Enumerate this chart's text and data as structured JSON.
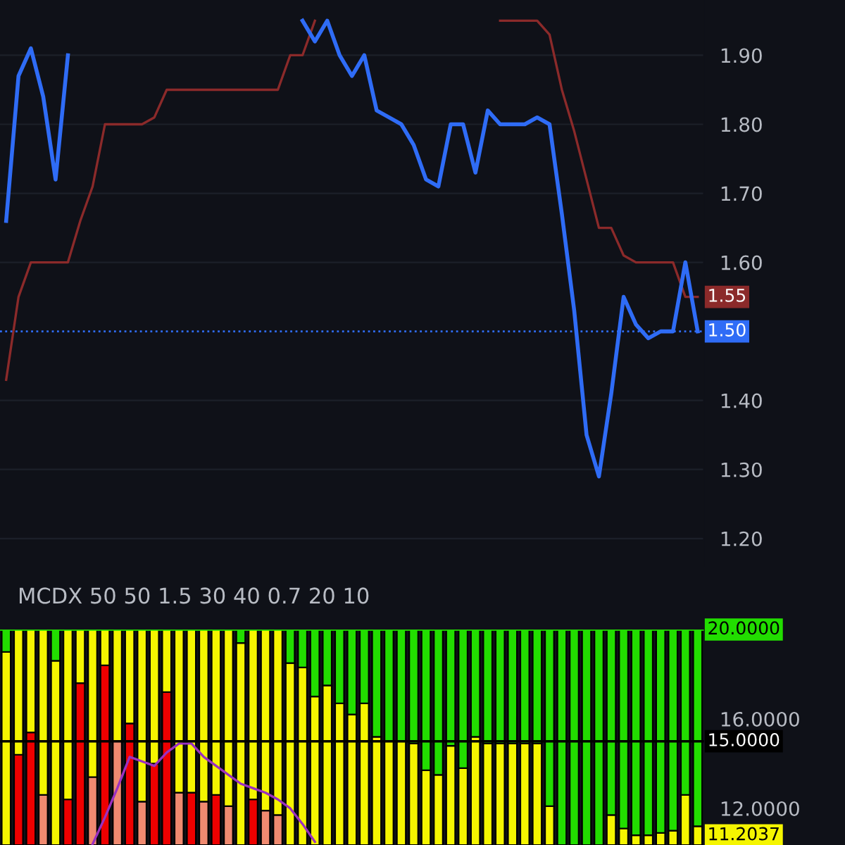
{
  "chart_data": [
    {
      "type": "line",
      "categories": [
        null,
        null,
        null,
        null,
        null,
        null,
        null,
        null,
        null,
        null,
        null,
        null,
        null,
        null,
        null,
        null,
        null,
        null,
        null,
        null,
        null,
        null,
        null,
        null,
        null,
        null,
        null,
        null,
        null,
        null,
        null,
        null,
        null,
        null,
        null,
        null,
        null,
        null,
        null,
        null,
        null,
        null,
        null,
        null,
        null,
        null,
        null,
        null,
        null,
        null,
        null,
        null,
        null,
        null,
        null,
        null,
        null
      ],
      "ylim": [
        1.16,
        1.98
      ],
      "yticks": [
        {
          "value": 1.2,
          "label": "1.20"
        },
        {
          "value": 1.3,
          "label": "1.30"
        },
        {
          "value": 1.4,
          "label": "1.40"
        },
        {
          "value": 1.6,
          "label": "1.60"
        },
        {
          "value": 1.7,
          "label": "1.70"
        },
        {
          "value": 1.8,
          "label": "1.80"
        },
        {
          "value": 1.9,
          "label": "1.90"
        }
      ],
      "grid": "y",
      "ref_lines": [
        {
          "axis": "y",
          "value": 1.5,
          "color": "#2f6cf6",
          "line_style": "dotted"
        }
      ],
      "series": [
        {
          "color": "#8b2a2a",
          "values": [
            1.43,
            1.55,
            1.6,
            1.6,
            1.6,
            1.6,
            1.66,
            1.71,
            1.8,
            1.8,
            1.8,
            1.8,
            1.81,
            1.85,
            1.85,
            1.85,
            1.85,
            1.85,
            1.85,
            1.85,
            1.85,
            1.85,
            1.85,
            1.9,
            1.9,
            1.95,
            null,
            null,
            null,
            null,
            null,
            null,
            null,
            null,
            null,
            null,
            null,
            null,
            null,
            null,
            null,
            null,
            null,
            null,
            null,
            null,
            null,
            null,
            null,
            null,
            null,
            null,
            null,
            null,
            null,
            null,
            null
          ]
        },
        {
          "color": "#8b2a2a",
          "values": [
            null,
            null,
            null,
            null,
            null,
            null,
            null,
            null,
            null,
            null,
            null,
            null,
            null,
            null,
            null,
            null,
            null,
            null,
            null,
            null,
            null,
            null,
            null,
            null,
            null,
            null,
            null,
            null,
            null,
            null,
            null,
            null,
            null,
            null,
            null,
            null,
            null,
            null,
            null,
            null,
            1.95,
            1.95,
            1.95,
            1.95,
            1.93,
            1.85,
            1.79,
            1.72,
            1.65,
            1.65,
            1.61,
            1.6,
            1.6,
            1.6,
            1.6,
            1.55,
            1.55
          ],
          "value_labels": [
            null,
            null,
            null,
            null,
            null,
            null,
            null,
            null,
            null,
            null,
            null,
            null,
            null,
            null,
            null,
            null,
            null,
            null,
            null,
            null,
            null,
            null,
            null,
            null,
            null,
            null,
            null,
            null,
            null,
            null,
            null,
            null,
            null,
            null,
            null,
            null,
            null,
            null,
            null,
            null,
            null,
            null,
            null,
            null,
            null,
            null,
            null,
            null,
            null,
            null,
            null,
            null,
            null,
            null,
            null,
            null,
            "1.55"
          ]
        },
        {
          "color": "#2f6cf6",
          "values": [
            1.66,
            1.87,
            1.91,
            1.84,
            1.72,
            1.9,
            null,
            null,
            null,
            null,
            null,
            null,
            null,
            null,
            null,
            null,
            null,
            null,
            null,
            null,
            null,
            null,
            null,
            null,
            null,
            null,
            null,
            null,
            null,
            null,
            null,
            null,
            null,
            null,
            null,
            null,
            null,
            null,
            null,
            null,
            null,
            null,
            null,
            null,
            null,
            null,
            null,
            null,
            null,
            null,
            null,
            null,
            null,
            null,
            null,
            null,
            null
          ]
        },
        {
          "color": "#2f6cf6",
          "values": [
            null,
            null,
            null,
            null,
            null,
            null,
            null,
            null,
            null,
            null,
            null,
            null,
            null,
            null,
            null,
            null,
            null,
            null,
            null,
            null,
            null,
            null,
            null,
            null,
            1.95,
            1.92,
            1.95,
            1.9,
            1.87,
            1.9,
            1.82,
            1.81,
            1.8,
            1.77,
            1.72,
            1.71,
            1.8,
            1.8,
            1.73,
            1.82,
            1.8,
            1.8,
            1.8,
            1.81,
            1.8,
            1.67,
            1.53,
            1.35,
            1.29,
            1.41,
            1.55,
            1.51,
            1.49,
            1.5,
            1.5,
            1.6,
            1.5
          ],
          "value_labels": [
            null,
            null,
            null,
            null,
            null,
            null,
            null,
            null,
            null,
            null,
            null,
            null,
            null,
            null,
            null,
            null,
            null,
            null,
            null,
            null,
            null,
            null,
            null,
            null,
            null,
            null,
            null,
            null,
            null,
            null,
            null,
            null,
            null,
            null,
            null,
            null,
            null,
            null,
            null,
            null,
            null,
            null,
            null,
            null,
            null,
            null,
            null,
            null,
            null,
            null,
            null,
            null,
            null,
            null,
            null,
            null,
            "1.50"
          ]
        }
      ]
    },
    {
      "type": "bar",
      "title": "MCDX 50 50 1.5 30 40 0.7 20 10",
      "categories": [
        null,
        null,
        null,
        null,
        null,
        null,
        null,
        null,
        null,
        null,
        null,
        null,
        null,
        null,
        null,
        null,
        null,
        null,
        null,
        null,
        null,
        null,
        null,
        null,
        null,
        null,
        null,
        null,
        null,
        null,
        null,
        null,
        null,
        null,
        null,
        null,
        null,
        null,
        null,
        null,
        null,
        null,
        null,
        null,
        null,
        null,
        null,
        null,
        null,
        null,
        null,
        null,
        null,
        null,
        null,
        null,
        null
      ],
      "ylim": [
        10.36,
        20
      ],
      "yticks": [
        {
          "value": 12,
          "label": "12.0000"
        },
        {
          "value": 16,
          "label": "16.0000"
        }
      ],
      "ref_lines": [
        {
          "axis": "y",
          "value": 20,
          "label": "20.0000",
          "color": "#22dd00"
        },
        {
          "axis": "y",
          "value": 15,
          "label": "15.0000",
          "color": "#000000"
        }
      ],
      "annotations": [
        "11.2037"
      ],
      "series": [
        {
          "color": "#f08a70",
          "values": [
            null,
            null,
            null,
            2.24,
            null,
            null,
            null,
            3.04,
            null,
            4.64,
            null,
            1.94,
            null,
            null,
            2.34,
            null,
            1.94,
            null,
            1.74,
            null,
            null,
            1.54,
            1.34,
            null,
            null,
            null,
            null,
            null,
            null,
            null,
            null,
            null,
            null,
            null,
            null,
            null,
            null,
            null,
            null,
            null,
            null,
            null,
            null,
            null,
            null,
            null,
            null,
            null,
            null,
            null,
            null,
            null,
            null,
            null,
            null,
            null,
            null
          ],
          "base": [
            null,
            null,
            null,
            10.36,
            null,
            null,
            null,
            10.36,
            null,
            10.36,
            null,
            10.36,
            null,
            null,
            10.36,
            null,
            10.36,
            null,
            10.36,
            null,
            null,
            10.36,
            10.36,
            null,
            null,
            null,
            null,
            null,
            null,
            null,
            null,
            null,
            null,
            null,
            null,
            null,
            null,
            null,
            null,
            null,
            null,
            null,
            null,
            null,
            null,
            null,
            null,
            null,
            null,
            null,
            null,
            null,
            null,
            null,
            null,
            null,
            null
          ]
        },
        {
          "color": "#ee0000",
          "values": [
            null,
            4.04,
            5.04,
            null,
            null,
            2.04,
            7.24,
            null,
            8.04,
            null,
            5.44,
            null,
            3.64,
            6.84,
            null,
            2.34,
            null,
            2.24,
            null,
            null,
            2.04,
            null,
            null,
            null,
            null,
            null,
            null,
            null,
            null,
            null,
            null,
            null,
            null,
            null,
            null,
            null,
            null,
            null,
            null,
            null,
            null,
            null,
            null,
            null,
            null,
            null,
            null,
            null,
            null,
            null,
            null,
            null,
            null,
            null,
            null,
            null,
            null
          ],
          "base": [
            null,
            10.36,
            10.36,
            null,
            null,
            10.36,
            10.36,
            null,
            10.36,
            null,
            10.36,
            null,
            10.36,
            10.36,
            null,
            10.36,
            null,
            10.36,
            null,
            null,
            10.36,
            null,
            null,
            null,
            null,
            null,
            null,
            null,
            null,
            null,
            null,
            null,
            null,
            null,
            null,
            null,
            null,
            null,
            null,
            null,
            null,
            null,
            null,
            null,
            null,
            null,
            null,
            null,
            null,
            null,
            null,
            null,
            null,
            null,
            null,
            null,
            null
          ]
        },
        {
          "color": "#f5f500",
          "values": [
            8.64,
            5.6,
            4.6,
            7.4,
            8.24,
            7.6,
            2.4,
            6.6,
            1.6,
            5.0,
            4.2,
            7.7,
            6.0,
            2.8,
            7.3,
            7.3,
            7.7,
            7.4,
            7.9,
            9.04,
            7.6,
            8.1,
            8.3,
            8.14,
            7.94,
            6.64,
            7.14,
            6.34,
            5.84,
            6.34,
            4.84,
            4.64,
            4.64,
            4.54,
            3.34,
            3.14,
            4.44,
            3.44,
            4.84,
            4.54,
            4.54,
            4.54,
            4.54,
            4.54,
            1.74,
            null,
            null,
            null,
            null,
            1.34,
            0.74,
            0.44,
            0.44,
            0.54,
            0.64,
            2.24,
            0.84
          ],
          "base": [
            10.36,
            14.4,
            15.4,
            12.6,
            10.36,
            12.4,
            17.6,
            13.4,
            18.4,
            15.0,
            15.8,
            12.3,
            14.0,
            17.2,
            12.7,
            12.7,
            12.3,
            12.6,
            12.1,
            10.36,
            12.4,
            11.9,
            11.7,
            10.36,
            10.36,
            10.36,
            10.36,
            10.36,
            10.36,
            10.36,
            10.36,
            10.36,
            10.36,
            10.36,
            10.36,
            10.36,
            10.36,
            10.36,
            10.36,
            10.36,
            10.36,
            10.36,
            10.36,
            10.36,
            10.36,
            null,
            null,
            null,
            null,
            10.36,
            10.36,
            10.36,
            10.36,
            10.36,
            10.36,
            10.36,
            10.36
          ]
        },
        {
          "color": "#22dd00",
          "values": [
            1.0,
            null,
            null,
            null,
            1.4,
            null,
            null,
            null,
            null,
            null,
            null,
            null,
            null,
            null,
            null,
            null,
            null,
            null,
            null,
            0.6,
            null,
            null,
            null,
            1.5,
            1.7,
            3.0,
            2.5,
            3.3,
            3.8,
            3.3,
            4.8,
            5.0,
            5.0,
            5.1,
            6.3,
            6.5,
            5.2,
            6.2,
            4.8,
            5.1,
            5.1,
            5.1,
            5.1,
            5.1,
            7.9,
            9.64,
            9.64,
            9.64,
            9.64,
            8.3,
            8.9,
            9.2,
            9.2,
            9.1,
            9.0,
            7.4,
            8.8
          ],
          "base": [
            19.0,
            null,
            null,
            null,
            18.6,
            null,
            null,
            null,
            null,
            null,
            null,
            null,
            null,
            null,
            null,
            null,
            null,
            null,
            null,
            19.4,
            null,
            null,
            null,
            18.5,
            18.3,
            17.0,
            17.5,
            16.7,
            16.2,
            16.7,
            15.2,
            15.0,
            15.0,
            14.9,
            13.7,
            13.5,
            14.8,
            13.8,
            15.2,
            14.9,
            14.9,
            14.9,
            14.9,
            14.9,
            12.1,
            10.36,
            10.36,
            10.36,
            10.36,
            11.7,
            11.1,
            10.8,
            10.8,
            10.9,
            11.0,
            12.6,
            11.2
          ]
        },
        {
          "type": "line",
          "color": "#9b30c0",
          "values": [
            null,
            null,
            null,
            null,
            null,
            null,
            null,
            10.4,
            11.6,
            12.9,
            14.3,
            14.1,
            13.9,
            14.5,
            14.9,
            14.9,
            14.3,
            13.9,
            13.5,
            13.1,
            12.9,
            12.7,
            12.4,
            12.0,
            11.3,
            10.5,
            null,
            null,
            null,
            null,
            null,
            null,
            null,
            null,
            null,
            null,
            null,
            null,
            null,
            null,
            null,
            null,
            null,
            null,
            null,
            null,
            null,
            null,
            null,
            null,
            null,
            null,
            null,
            null,
            null,
            null,
            null
          ]
        }
      ]
    }
  ]
}
